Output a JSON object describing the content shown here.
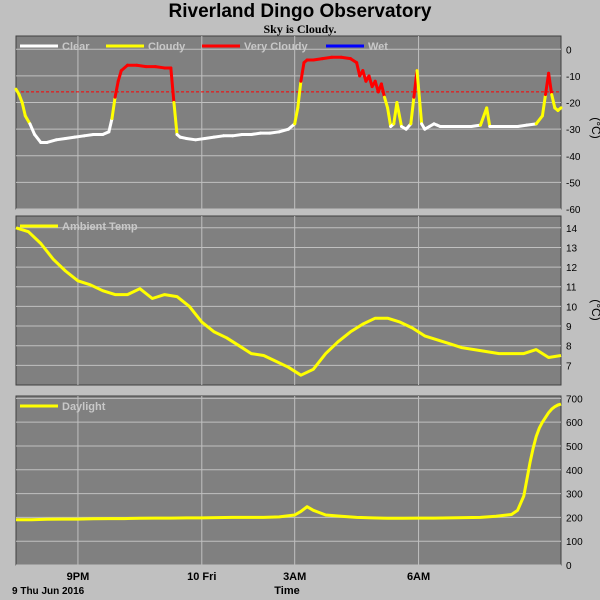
{
  "title": "Riverland Dingo Observatory",
  "subtitle": "Sky is Cloudy.",
  "x_axis": {
    "title": "Time",
    "date_label": "9 Thu Jun 2016",
    "tick_labels": [
      "9PM",
      "10 Fri",
      "3AM",
      "6AM"
    ]
  },
  "colors": {
    "background": "#c0c0c0",
    "plot_background": "#808080",
    "grid": "#c0c0c0",
    "clear": "#ffffff",
    "cloudy": "#ffff00",
    "very_cloudy": "#ff0000",
    "wet": "#0000ff",
    "threshold": "#ff0000",
    "ambient": "#ffff00",
    "daylight": "#ffff00"
  },
  "chart_data": [
    {
      "type": "line",
      "name": "sky",
      "legend": [
        "Clear",
        "Cloudy",
        "Very Cloudy",
        "Wet"
      ],
      "ylabel": "(°C)",
      "ylim": [
        -60,
        5
      ],
      "yticks": [
        0,
        -10,
        -20,
        -30,
        -40,
        -50,
        -60
      ],
      "threshold": -16,
      "x_unit": "hours since 19:00",
      "x": [
        0.0,
        0.1,
        0.2,
        0.3,
        0.45,
        0.6,
        0.8,
        1.0,
        1.3,
        1.6,
        1.9,
        2.2,
        2.5,
        2.8,
        3.0,
        3.1,
        3.2,
        3.3,
        3.4,
        3.6,
        3.9,
        4.2,
        4.5,
        4.8,
        5.0,
        5.1,
        5.2,
        5.3,
        5.5,
        5.8,
        6.1,
        6.4,
        6.7,
        7.0,
        7.3,
        7.6,
        7.9,
        8.2,
        8.5,
        8.8,
        9.0,
        9.1,
        9.2,
        9.3,
        9.4,
        9.6,
        9.9,
        10.2,
        10.5,
        10.8,
        11.0,
        11.1,
        11.2,
        11.3,
        11.4,
        11.5,
        11.6,
        11.7,
        11.8,
        11.9,
        12.0,
        12.1,
        12.2,
        12.3,
        12.45,
        12.6,
        12.75,
        12.85,
        12.95,
        13.1,
        13.2,
        13.35,
        13.5,
        13.6,
        13.7,
        13.8,
        13.9,
        14.1,
        14.4,
        14.7,
        15.0,
        15.2,
        15.3,
        15.4,
        15.6,
        15.9,
        16.2,
        16.5,
        16.8,
        17.0,
        17.1,
        17.2,
        17.3,
        17.4,
        17.5,
        17.6
      ],
      "y": [
        -15,
        -17,
        -20,
        -25,
        -28,
        -32,
        -35,
        -35,
        -34,
        -33.5,
        -33,
        -32.5,
        -32,
        -32,
        -31,
        -26,
        -18,
        -12,
        -8,
        -6,
        -6,
        -6.5,
        -6.5,
        -7,
        -7,
        -20,
        -32,
        -33,
        -33.5,
        -34,
        -33.5,
        -33,
        -32.5,
        -32.5,
        -32,
        -32,
        -31.5,
        -31.5,
        -31,
        -30,
        -28,
        -22,
        -12,
        -5,
        -4,
        -4,
        -3.5,
        -3,
        -3,
        -3.5,
        -5,
        -10,
        -8,
        -12,
        -10,
        -14,
        -12,
        -16,
        -13,
        -18,
        -22,
        -29,
        -28,
        -20,
        -29,
        -30,
        -28,
        -18,
        -8,
        -28,
        -30,
        -29,
        -28,
        -28.5,
        -29,
        -29,
        -29,
        -29,
        -29,
        -29,
        -28.5,
        -22,
        -29,
        -29,
        -29,
        -29,
        -29,
        -28.5,
        -28,
        -25,
        -17,
        -9,
        -17,
        -22,
        -23,
        -22
      ]
    },
    {
      "type": "line",
      "name": "ambient",
      "legend": [
        "Ambient Temp"
      ],
      "ylabel": "(°C)",
      "ylim": [
        6,
        14.6
      ],
      "yticks": [
        7,
        8,
        9,
        10,
        11,
        12,
        13,
        14
      ],
      "x_unit": "hours since 19:00",
      "x": [
        0.0,
        0.4,
        0.8,
        1.2,
        1.6,
        2.0,
        2.4,
        2.8,
        3.2,
        3.6,
        4.0,
        4.4,
        4.8,
        5.2,
        5.6,
        6.0,
        6.4,
        6.8,
        7.2,
        7.6,
        8.0,
        8.4,
        8.8,
        9.2,
        9.6,
        10.0,
        10.4,
        10.8,
        11.2,
        11.6,
        12.0,
        12.4,
        12.8,
        13.2,
        13.6,
        14.0,
        14.4,
        14.8,
        15.2,
        15.6,
        16.0,
        16.4,
        16.8,
        17.2,
        17.6
      ],
      "y": [
        14.0,
        13.8,
        13.2,
        12.4,
        11.8,
        11.3,
        11.1,
        10.8,
        10.6,
        10.6,
        10.9,
        10.4,
        10.6,
        10.5,
        10.0,
        9.2,
        8.7,
        8.4,
        8.0,
        7.6,
        7.5,
        7.2,
        6.9,
        6.5,
        6.8,
        7.6,
        8.2,
        8.7,
        9.1,
        9.4,
        9.4,
        9.2,
        8.9,
        8.5,
        8.3,
        8.1,
        7.9,
        7.8,
        7.7,
        7.6,
        7.6,
        7.6,
        7.8,
        7.4,
        7.5
      ]
    },
    {
      "type": "line",
      "name": "daylight",
      "legend": [
        "Daylight"
      ],
      "ylim": [
        0,
        710
      ],
      "yticks": [
        0,
        100,
        200,
        300,
        400,
        500,
        600,
        700
      ],
      "x_unit": "hours since 19:00",
      "x": [
        0.0,
        0.5,
        1.0,
        1.5,
        2.0,
        2.5,
        3.0,
        3.5,
        4.0,
        4.5,
        5.0,
        5.5,
        6.0,
        6.5,
        7.0,
        7.5,
        8.0,
        8.5,
        9.0,
        9.2,
        9.4,
        9.6,
        9.8,
        10.0,
        10.5,
        11.0,
        11.5,
        12.0,
        12.5,
        13.0,
        13.5,
        14.0,
        14.5,
        15.0,
        15.5,
        16.0,
        16.2,
        16.4,
        16.5,
        16.6,
        16.7,
        16.8,
        16.9,
        17.0,
        17.1,
        17.2,
        17.3,
        17.4,
        17.5,
        17.6
      ],
      "y": [
        190,
        190,
        192,
        193,
        193,
        194,
        195,
        195,
        196,
        197,
        197,
        198,
        198,
        199,
        200,
        200,
        200,
        202,
        210,
        225,
        245,
        230,
        220,
        210,
        205,
        200,
        198,
        196,
        196,
        197,
        197,
        198,
        199,
        200,
        205,
        212,
        230,
        290,
        360,
        430,
        490,
        540,
        575,
        600,
        620,
        640,
        655,
        665,
        672,
        676
      ]
    }
  ]
}
